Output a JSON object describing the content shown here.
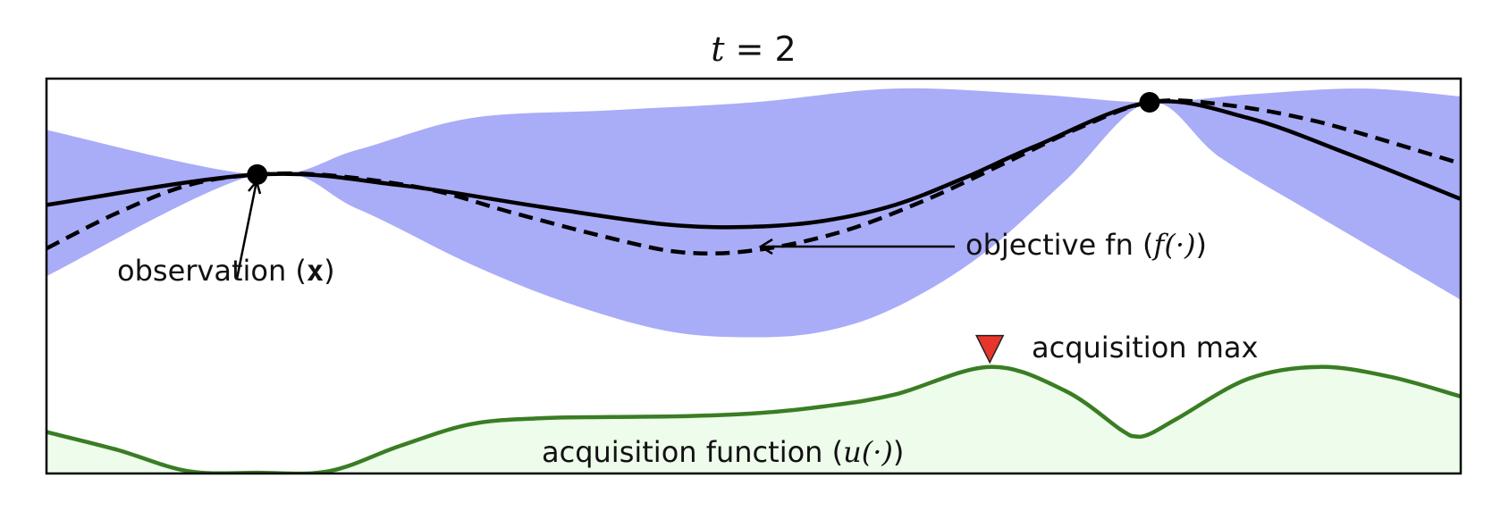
{
  "chart_data": {
    "type": "line",
    "title_var": "t",
    "title_eq": " = ",
    "title_value": "2",
    "xlim": [
      0,
      1
    ],
    "ylim": [
      0,
      1
    ],
    "grid": false,
    "colors": {
      "confidence_band": "#a9acf7",
      "objective": "#000000",
      "posterior_mean": "#000000",
      "acquisition_line": "#3a7d24",
      "acquisition_fill": "#eefcec",
      "acquisition_marker": "#e8352b"
    },
    "observations": [
      {
        "x": 0.149,
        "y": 0.757
      },
      {
        "x": 0.78,
        "y": 0.94
      }
    ],
    "posterior_mean": {
      "x": [
        0,
        0.149,
        0.25,
        0.35,
        0.44,
        0.5,
        0.55,
        0.6,
        0.65,
        0.7,
        0.78,
        0.85,
        0.92,
        1.0
      ],
      "y": [
        0.68,
        0.757,
        0.73,
        0.675,
        0.63,
        0.625,
        0.64,
        0.68,
        0.75,
        0.83,
        0.94,
        0.9,
        0.81,
        0.695
      ]
    },
    "objective": {
      "x": [
        0,
        0.05,
        0.1,
        0.149,
        0.2,
        0.27,
        0.33,
        0.4,
        0.45,
        0.5,
        0.56,
        0.62,
        0.68,
        0.73,
        0.78,
        0.83,
        0.9,
        1.0
      ],
      "y": [
        0.57,
        0.66,
        0.73,
        0.757,
        0.755,
        0.72,
        0.66,
        0.595,
        0.56,
        0.565,
        0.61,
        0.69,
        0.79,
        0.875,
        0.94,
        0.935,
        0.89,
        0.785
      ]
    },
    "confidence_upper": {
      "x": [
        0,
        0.149,
        0.22,
        0.3,
        0.4,
        0.5,
        0.6,
        0.7,
        0.78,
        0.85,
        0.93,
        1.0
      ],
      "y": [
        0.87,
        0.757,
        0.82,
        0.9,
        0.92,
        0.94,
        0.975,
        0.96,
        0.94,
        0.96,
        0.975,
        0.955
      ]
    },
    "confidence_lower": {
      "x": [
        0,
        0.149,
        0.22,
        0.3,
        0.37,
        0.44,
        0.5,
        0.55,
        0.6,
        0.66,
        0.72,
        0.78,
        0.83,
        0.9,
        1.0
      ],
      "y": [
        0.5,
        0.757,
        0.67,
        0.53,
        0.43,
        0.36,
        0.345,
        0.36,
        0.42,
        0.55,
        0.74,
        0.94,
        0.8,
        0.65,
        0.44
      ]
    },
    "acquisition": {
      "x": [
        0,
        0.05,
        0.1,
        0.149,
        0.2,
        0.25,
        0.3,
        0.35,
        0.4,
        0.45,
        0.5,
        0.55,
        0.6,
        0.667,
        0.72,
        0.76,
        0.77,
        0.78,
        0.8,
        0.85,
        0.9,
        0.95,
        1.0
      ],
      "y": [
        0.105,
        0.06,
        0.006,
        0.002,
        0.006,
        0.07,
        0.125,
        0.14,
        0.143,
        0.145,
        0.152,
        0.17,
        0.2,
        0.27,
        0.21,
        0.11,
        0.094,
        0.1,
        0.14,
        0.24,
        0.27,
        0.245,
        0.195
      ]
    },
    "acquisition_max": {
      "x": 0.667,
      "y": 0.27
    },
    "annotations": {
      "observation_label": "observation (",
      "observation_symbol": "x",
      "observation_close": ")",
      "objective_label": "objective fn (",
      "objective_symbol": "f(·)",
      "objective_close": ")",
      "acq_max_label": "acquisition max",
      "acq_fn_label": "acquisition function (",
      "acq_fn_symbol": "u(·)",
      "acq_fn_close": ")"
    }
  }
}
